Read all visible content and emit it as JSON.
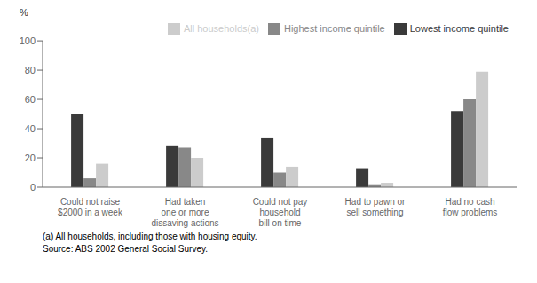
{
  "chart_data": {
    "type": "bar",
    "categories": [
      "Could not raise\n$2000 in a week",
      "Had taken\none or more\ndissaving actions",
      "Could not pay\nhousehold\nbill on time",
      "Had to pawn or\nsell something",
      "Had no cash\nflow problems"
    ],
    "series": [
      {
        "name": "Lowest income quintile",
        "color": "#3a3a3a",
        "values": [
          50,
          28,
          34,
          13,
          52
        ]
      },
      {
        "name": "Highest income quintile",
        "color": "#888888",
        "values": [
          6,
          27,
          10,
          2,
          60
        ]
      },
      {
        "name": "All households(a)",
        "color": "#cccccc",
        "values": [
          16,
          20,
          14,
          3,
          79
        ]
      }
    ],
    "ylim": [
      0,
      100
    ],
    "yticks": [
      0,
      20,
      40,
      60,
      80,
      100
    ],
    "ylabel": "%",
    "legend": "upper right",
    "grid": false,
    "annotations": [
      "(a) All households, including those with housing equity.",
      "Source: ABS 2002 General Social Survey."
    ]
  }
}
